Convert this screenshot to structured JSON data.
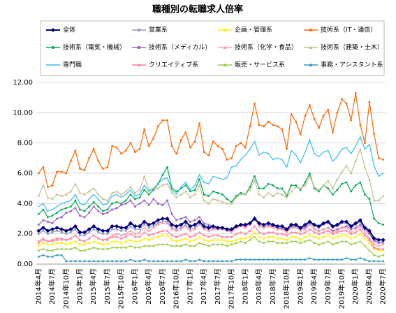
{
  "chart_data": {
    "type": "line",
    "title": "職種別の転職求人倍率",
    "categories": [
      "2014年4月",
      null,
      null,
      "2014年7月",
      null,
      null,
      "2014年10月",
      null,
      null,
      "2015年1月",
      null,
      null,
      "2015年4月",
      null,
      null,
      "2015年7月",
      null,
      null,
      "2015年10月",
      null,
      null,
      "2016年1月",
      null,
      null,
      "2016年4月",
      null,
      null,
      "2016年7月",
      null,
      null,
      "2016年10月",
      null,
      null,
      "2017年1月",
      null,
      null,
      "2017年4月",
      null,
      null,
      "2017年7月",
      null,
      null,
      "2017年10月",
      null,
      null,
      "2018年1月",
      null,
      null,
      "2018年4月",
      null,
      null,
      "2018年7月",
      null,
      null,
      "2018年10月",
      null,
      null,
      "2019年1月",
      null,
      null,
      "2019年4月",
      null,
      null,
      "2019年7月",
      null,
      null,
      "2019年10月",
      null,
      null,
      "2020年1月",
      null,
      null,
      "2020年4月",
      null,
      null,
      "2020年7月"
    ],
    "ylim": [
      0,
      12
    ],
    "yticks": [
      {
        "value": 0,
        "label": "0.00"
      },
      {
        "value": 2,
        "label": "2.00"
      },
      {
        "value": 4,
        "label": "4.00"
      },
      {
        "value": 6,
        "label": "6.00"
      },
      {
        "value": 8,
        "label": "8.00"
      },
      {
        "value": 10,
        "label": "10.00"
      },
      {
        "value": 12,
        "label": "12.00"
      }
    ],
    "grid": true,
    "series": [
      {
        "name": "全体",
        "color": "#000080",
        "marker": "diamond",
        "values": [
          2.2,
          2.4,
          2.2,
          2.3,
          2.4,
          2.3,
          2.2,
          2.3,
          2.5,
          2.1,
          2.1,
          2.3,
          2.5,
          2.3,
          2.2,
          2.2,
          2.5,
          2.5,
          2.4,
          2.4,
          2.7,
          2.5,
          2.5,
          2.8,
          2.6,
          2.7,
          2.9,
          3.0,
          3.0,
          2.6,
          2.5,
          2.6,
          2.8,
          2.5,
          2.6,
          2.8,
          2.5,
          2.4,
          2.5,
          2.4,
          2.4,
          2.3,
          2.3,
          2.5,
          2.6,
          2.6,
          2.7,
          3.0,
          2.7,
          2.6,
          2.7,
          2.6,
          2.5,
          2.5,
          2.3,
          2.6,
          2.6,
          2.4,
          2.6,
          2.8,
          2.6,
          2.5,
          2.7,
          2.8,
          2.5,
          2.6,
          2.8,
          2.8,
          2.5,
          2.7,
          2.9,
          2.4,
          2.2,
          1.7,
          1.6,
          1.6
        ]
      },
      {
        "name": "営業系",
        "color": "#9999cc",
        "marker": "square",
        "values": [
          2.0,
          2.2,
          2.0,
          2.1,
          2.2,
          2.1,
          2.0,
          2.1,
          2.3,
          1.9,
          1.9,
          2.1,
          2.3,
          2.1,
          2.0,
          2.0,
          2.3,
          2.3,
          2.2,
          2.2,
          2.5,
          2.3,
          2.3,
          2.6,
          2.4,
          2.5,
          2.7,
          2.8,
          2.8,
          2.4,
          2.3,
          2.4,
          2.6,
          2.3,
          2.4,
          2.7,
          2.4,
          2.3,
          2.4,
          2.3,
          2.3,
          2.2,
          2.2,
          2.4,
          2.6,
          2.6,
          2.7,
          3.1,
          2.6,
          2.5,
          2.6,
          2.5,
          2.4,
          2.4,
          2.2,
          2.5,
          2.5,
          2.3,
          2.5,
          2.7,
          2.5,
          2.4,
          2.6,
          2.7,
          2.4,
          2.5,
          2.7,
          2.7,
          2.4,
          2.6,
          2.8,
          2.3,
          2.0,
          1.5,
          1.4,
          1.4
        ]
      },
      {
        "name": "企画・管理系",
        "color": "#ffee00",
        "marker": "triangle",
        "values": [
          1.2,
          1.4,
          1.3,
          1.3,
          1.4,
          1.4,
          1.3,
          1.4,
          1.5,
          1.3,
          1.3,
          1.4,
          1.5,
          1.4,
          1.3,
          1.3,
          1.5,
          1.5,
          1.4,
          1.5,
          1.6,
          1.5,
          1.5,
          1.7,
          1.6,
          1.7,
          1.8,
          1.9,
          1.9,
          1.6,
          1.5,
          1.6,
          1.7,
          1.5,
          1.6,
          1.8,
          1.6,
          1.5,
          1.6,
          1.6,
          1.6,
          1.5,
          1.5,
          1.6,
          1.7,
          1.7,
          1.8,
          2.1,
          1.8,
          1.7,
          1.8,
          1.8,
          1.7,
          1.7,
          1.6,
          1.8,
          1.8,
          1.6,
          1.8,
          1.9,
          1.8,
          1.7,
          1.8,
          1.9,
          1.7,
          1.8,
          1.9,
          1.9,
          1.7,
          1.8,
          2.0,
          1.7,
          1.4,
          1.0,
          0.9,
          0.9
        ]
      },
      {
        "name": "技術系（IT・通信）",
        "color": "#ff6600",
        "marker": "circle",
        "values": [
          6.0,
          6.4,
          5.1,
          5.2,
          6.1,
          6.1,
          6.0,
          6.8,
          7.5,
          6.3,
          6.2,
          7.0,
          7.6,
          6.8,
          6.3,
          6.4,
          7.8,
          7.7,
          7.3,
          7.5,
          8.0,
          7.4,
          7.6,
          8.9,
          7.8,
          8.3,
          9.1,
          9.5,
          9.5,
          7.8,
          7.3,
          8.2,
          8.7,
          7.7,
          8.1,
          9.3,
          7.4,
          7.2,
          8.1,
          7.8,
          7.6,
          6.9,
          7.0,
          7.8,
          8.0,
          7.7,
          9.1,
          10.6,
          9.2,
          9.1,
          9.4,
          9.2,
          9.1,
          8.9,
          7.6,
          9.9,
          9.4,
          8.6,
          9.8,
          10.5,
          9.6,
          9.0,
          9.8,
          10.2,
          8.7,
          10.0,
          10.9,
          10.6,
          9.5,
          11.3,
          9.2,
          8.0,
          10.7,
          8.6,
          7.0,
          6.9
        ]
      },
      {
        "name": "技術系（電気・機械）",
        "color": "#00a651",
        "marker": "circle",
        "values": [
          3.3,
          3.6,
          3.1,
          3.2,
          3.4,
          3.6,
          3.7,
          3.8,
          4.2,
          3.6,
          3.5,
          3.8,
          4.1,
          3.8,
          3.5,
          3.6,
          4.0,
          4.1,
          4.0,
          4.2,
          4.6,
          4.3,
          4.4,
          4.9,
          4.6,
          4.9,
          5.3,
          5.9,
          6.4,
          5.0,
          4.8,
          5.0,
          5.2,
          4.8,
          4.9,
          5.6,
          4.6,
          4.5,
          4.8,
          4.7,
          4.6,
          4.3,
          4.1,
          4.5,
          4.7,
          4.6,
          5.1,
          5.8,
          5.0,
          5.0,
          5.3,
          5.2,
          5.0,
          5.0,
          4.5,
          5.2,
          5.2,
          4.9,
          5.4,
          6.0,
          5.0,
          4.8,
          5.2,
          5.0,
          4.6,
          4.9,
          5.3,
          5.4,
          4.8,
          5.2,
          5.4,
          4.6,
          4.3,
          3.0,
          2.7,
          2.6
        ]
      },
      {
        "name": "技術系（メディカル）",
        "color": "#9966cc",
        "marker": "square",
        "values": [
          2.6,
          2.9,
          2.8,
          2.7,
          3.0,
          3.1,
          3.4,
          3.5,
          3.7,
          3.2,
          3.1,
          3.4,
          3.8,
          3.5,
          3.3,
          3.4,
          3.6,
          3.7,
          3.9,
          4.0,
          4.2,
          3.8,
          4.0,
          4.2,
          3.9,
          4.3,
          4.0,
          3.9,
          4.2,
          3.3,
          2.9,
          3.0,
          3.1,
          2.8,
          2.9,
          3.1,
          2.7,
          2.6,
          2.5,
          2.4,
          2.4,
          2.3,
          2.2,
          2.4,
          2.6,
          2.5,
          2.7,
          3.0,
          2.5,
          2.4,
          2.5,
          2.5,
          2.4,
          2.3,
          2.2,
          2.4,
          2.5,
          2.3,
          2.4,
          2.6,
          2.3,
          2.2,
          2.3,
          2.4,
          2.2,
          2.3,
          2.4,
          2.5,
          2.3,
          2.4,
          2.6,
          2.3,
          2.0,
          1.6,
          1.4,
          1.5
        ]
      },
      {
        "name": "技術系（化学・食品）",
        "color": "#ff99aa",
        "marker": "triangle",
        "values": [
          1.4,
          1.6,
          1.5,
          1.5,
          1.6,
          1.6,
          1.6,
          1.7,
          1.9,
          1.6,
          1.5,
          1.7,
          1.9,
          1.7,
          1.6,
          1.7,
          1.9,
          2.0,
          1.9,
          2.0,
          2.2,
          2.0,
          2.1,
          2.4,
          2.2,
          2.4,
          2.6,
          2.7,
          2.7,
          2.3,
          2.2,
          2.3,
          2.5,
          2.2,
          2.3,
          2.6,
          2.3,
          2.2,
          2.3,
          2.3,
          2.3,
          2.2,
          2.1,
          2.4,
          2.5,
          2.4,
          2.6,
          3.0,
          2.5,
          2.4,
          2.5,
          2.4,
          2.3,
          2.3,
          2.1,
          2.4,
          2.4,
          2.2,
          2.3,
          2.6,
          2.3,
          2.2,
          2.3,
          2.4,
          2.1,
          2.2,
          2.4,
          2.4,
          2.1,
          2.3,
          2.5,
          2.1,
          1.7,
          1.3,
          1.2,
          1.3
        ]
      },
      {
        "name": "技術系（建築・土木）",
        "color": "#c4c08c",
        "marker": "triangle",
        "values": [
          4.5,
          5.2,
          4.4,
          4.3,
          4.6,
          4.5,
          4.6,
          4.8,
          5.3,
          4.7,
          4.6,
          4.8,
          5.0,
          4.6,
          4.3,
          4.2,
          4.7,
          4.8,
          4.6,
          4.8,
          5.1,
          4.7,
          4.9,
          5.8,
          4.9,
          5.0,
          5.0,
          5.2,
          5.3,
          4.7,
          4.4,
          4.6,
          4.8,
          4.4,
          4.6,
          5.2,
          4.2,
          4.0,
          4.3,
          4.2,
          4.1,
          4.0,
          4.0,
          4.4,
          4.6,
          4.6,
          4.9,
          5.5,
          4.6,
          4.4,
          4.7,
          4.5,
          4.7,
          4.6,
          4.4,
          4.8,
          5.1,
          5.0,
          5.2,
          5.8,
          5.1,
          4.9,
          5.2,
          5.5,
          5.0,
          5.6,
          6.1,
          6.5,
          6.0,
          6.8,
          7.6,
          6.4,
          5.6,
          4.2,
          4.2,
          4.5
        ]
      },
      {
        "name": "専門職",
        "color": "#33bbee",
        "marker": "none",
        "values": [
          3.8,
          4.0,
          3.5,
          3.6,
          3.8,
          4.0,
          4.1,
          4.2,
          4.6,
          4.0,
          3.9,
          4.3,
          4.6,
          4.3,
          3.9,
          4.0,
          4.5,
          4.6,
          4.4,
          4.6,
          4.9,
          4.5,
          4.6,
          5.2,
          4.8,
          5.0,
          5.3,
          5.6,
          5.7,
          4.9,
          4.6,
          5.1,
          5.4,
          4.9,
          5.2,
          5.9,
          5.4,
          5.3,
          5.8,
          5.7,
          5.6,
          5.7,
          6.4,
          6.5,
          6.9,
          7.2,
          7.6,
          8.1,
          7.2,
          7.4,
          7.3,
          6.9,
          7.0,
          6.9,
          6.4,
          7.5,
          7.2,
          6.7,
          7.4,
          8.2,
          7.3,
          7.1,
          7.4,
          7.5,
          6.8,
          7.1,
          7.6,
          7.7,
          7.3,
          7.8,
          8.4,
          7.6,
          7.9,
          6.5,
          5.8,
          6.0
        ]
      },
      {
        "name": "クリエイティブ系",
        "color": "#ff7f9f",
        "marker": "triangle",
        "values": [
          1.5,
          1.7,
          1.5,
          1.6,
          1.7,
          1.7,
          1.6,
          1.7,
          1.9,
          1.6,
          1.5,
          1.7,
          1.9,
          1.7,
          1.6,
          1.6,
          1.8,
          1.8,
          1.7,
          1.8,
          2.0,
          1.8,
          1.8,
          2.1,
          1.9,
          2.0,
          2.1,
          2.2,
          2.2,
          1.9,
          1.8,
          1.9,
          2.0,
          1.8,
          1.9,
          2.1,
          1.9,
          1.8,
          1.9,
          1.9,
          1.8,
          1.8,
          1.8,
          2.0,
          2.1,
          2.0,
          2.2,
          2.5,
          2.1,
          2.0,
          2.1,
          2.1,
          2.0,
          2.0,
          1.9,
          2.1,
          2.1,
          2.0,
          2.1,
          2.3,
          2.1,
          2.0,
          2.1,
          2.2,
          2.0,
          2.1,
          2.2,
          2.2,
          2.0,
          2.1,
          2.3,
          1.9,
          1.6,
          1.1,
          1.0,
          1.0
        ]
      },
      {
        "name": "販売・サービス系",
        "color": "#99cc44",
        "marker": "triangle",
        "values": [
          0.9,
          1.0,
          0.9,
          0.9,
          1.0,
          1.0,
          1.0,
          1.0,
          1.1,
          0.9,
          0.9,
          1.0,
          1.1,
          1.0,
          1.0,
          1.0,
          1.1,
          1.1,
          1.1,
          1.1,
          1.2,
          1.1,
          1.1,
          1.2,
          1.2,
          1.2,
          1.3,
          1.3,
          1.3,
          1.2,
          1.2,
          1.2,
          1.3,
          1.2,
          1.2,
          1.4,
          1.3,
          1.2,
          1.3,
          1.3,
          1.3,
          1.2,
          1.3,
          1.4,
          1.5,
          1.4,
          1.6,
          1.8,
          1.5,
          1.4,
          1.5,
          1.5,
          1.4,
          1.4,
          1.4,
          1.5,
          1.5,
          1.4,
          1.5,
          1.6,
          1.4,
          1.3,
          1.4,
          1.5,
          1.3,
          1.4,
          1.5,
          1.5,
          1.3,
          1.4,
          1.5,
          1.2,
          0.9,
          0.6,
          0.5,
          0.6
        ]
      },
      {
        "name": "事務・アシスタント系",
        "color": "#3399bb",
        "marker": "triangle",
        "values": [
          0.5,
          0.6,
          0.5,
          0.5,
          0.6,
          0.6,
          0.2,
          0.2,
          0.2,
          0.2,
          0.2,
          0.2,
          0.2,
          0.2,
          0.2,
          0.2,
          0.2,
          0.2,
          0.2,
          0.2,
          0.3,
          0.2,
          0.2,
          0.3,
          0.2,
          0.2,
          0.2,
          0.2,
          0.2,
          0.2,
          0.2,
          0.2,
          0.3,
          0.2,
          0.2,
          0.3,
          0.2,
          0.2,
          0.2,
          0.2,
          0.2,
          0.2,
          0.2,
          0.3,
          0.3,
          0.3,
          0.3,
          0.3,
          0.3,
          0.3,
          0.3,
          0.3,
          0.3,
          0.3,
          0.3,
          0.3,
          0.3,
          0.3,
          0.3,
          0.4,
          0.3,
          0.3,
          0.3,
          0.3,
          0.3,
          0.3,
          0.3,
          0.4,
          0.3,
          0.3,
          0.4,
          0.3,
          0.2,
          0.2,
          0.2,
          0.2
        ]
      }
    ]
  }
}
